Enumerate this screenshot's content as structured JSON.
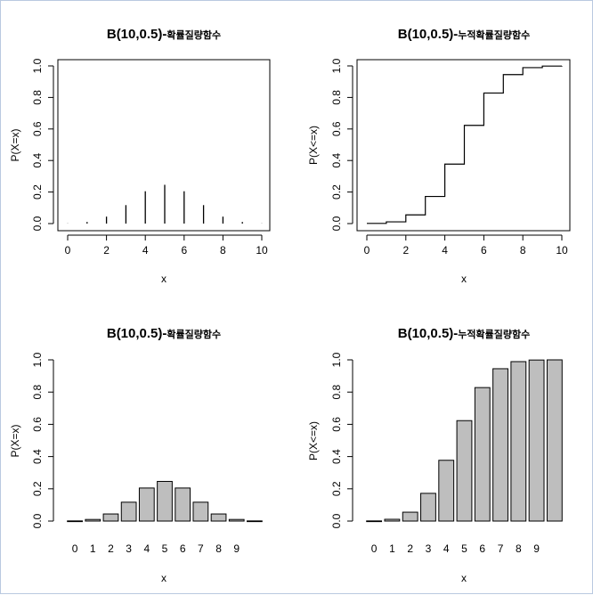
{
  "chart_data": [
    {
      "type": "line",
      "style": "histogram-spikes",
      "title": "B(10,0.5)-",
      "title_suffix": "확률질량함수",
      "xlabel": "x",
      "ylabel": "P(X=x)",
      "x": [
        0,
        1,
        2,
        3,
        4,
        5,
        6,
        7,
        8,
        9,
        10
      ],
      "values": [
        0.001,
        0.01,
        0.044,
        0.117,
        0.205,
        0.246,
        0.205,
        0.117,
        0.044,
        0.01,
        0.001
      ],
      "xlim": [
        0,
        10
      ],
      "ylim": [
        0,
        1
      ],
      "xticks": [
        0,
        2,
        4,
        6,
        8,
        10
      ],
      "yticks": [
        "0.0",
        "0.2",
        "0.4",
        "0.6",
        "0.8",
        "1.0"
      ],
      "grid": false
    },
    {
      "type": "line",
      "style": "step",
      "title": "B(10,0.5)-",
      "title_suffix": "누적확률질량함수",
      "xlabel": "x",
      "ylabel": "P(X<=x)",
      "x": [
        0,
        1,
        2,
        3,
        4,
        5,
        6,
        7,
        8,
        9,
        10
      ],
      "values": [
        0.001,
        0.011,
        0.055,
        0.172,
        0.377,
        0.623,
        0.828,
        0.945,
        0.989,
        0.999,
        1.0
      ],
      "xlim": [
        0,
        10
      ],
      "ylim": [
        0,
        1
      ],
      "xticks": [
        0,
        2,
        4,
        6,
        8,
        10
      ],
      "yticks": [
        "0.0",
        "0.2",
        "0.4",
        "0.6",
        "0.8",
        "1.0"
      ],
      "grid": false
    },
    {
      "type": "bar",
      "title": "B(10,0.5)-",
      "title_suffix": "확률질량함수",
      "xlabel": "x",
      "ylabel": "P(X=x)",
      "categories": [
        "0",
        "1",
        "2",
        "3",
        "4",
        "5",
        "6",
        "7",
        "8",
        "9",
        ""
      ],
      "values": [
        0.001,
        0.01,
        0.044,
        0.117,
        0.205,
        0.246,
        0.205,
        0.117,
        0.044,
        0.01,
        0.001
      ],
      "ylim": [
        0,
        1
      ],
      "yticks": [
        "0.0",
        "0.2",
        "0.4",
        "0.6",
        "0.8",
        "1.0"
      ],
      "bar_color": "#bebebe",
      "grid": false
    },
    {
      "type": "bar",
      "title": "B(10,0.5)-",
      "title_suffix": "누적확률질량함수",
      "xlabel": "x",
      "ylabel": "P(X<=x)",
      "categories": [
        "0",
        "1",
        "2",
        "3",
        "4",
        "5",
        "6",
        "7",
        "8",
        "9",
        ""
      ],
      "values": [
        0.001,
        0.011,
        0.055,
        0.172,
        0.377,
        0.623,
        0.828,
        0.945,
        0.989,
        0.999,
        1.0
      ],
      "ylim": [
        0,
        1
      ],
      "yticks": [
        "0.0",
        "0.2",
        "0.4",
        "0.6",
        "0.8",
        "1.0"
      ],
      "bar_color": "#bebebe",
      "grid": false
    }
  ]
}
